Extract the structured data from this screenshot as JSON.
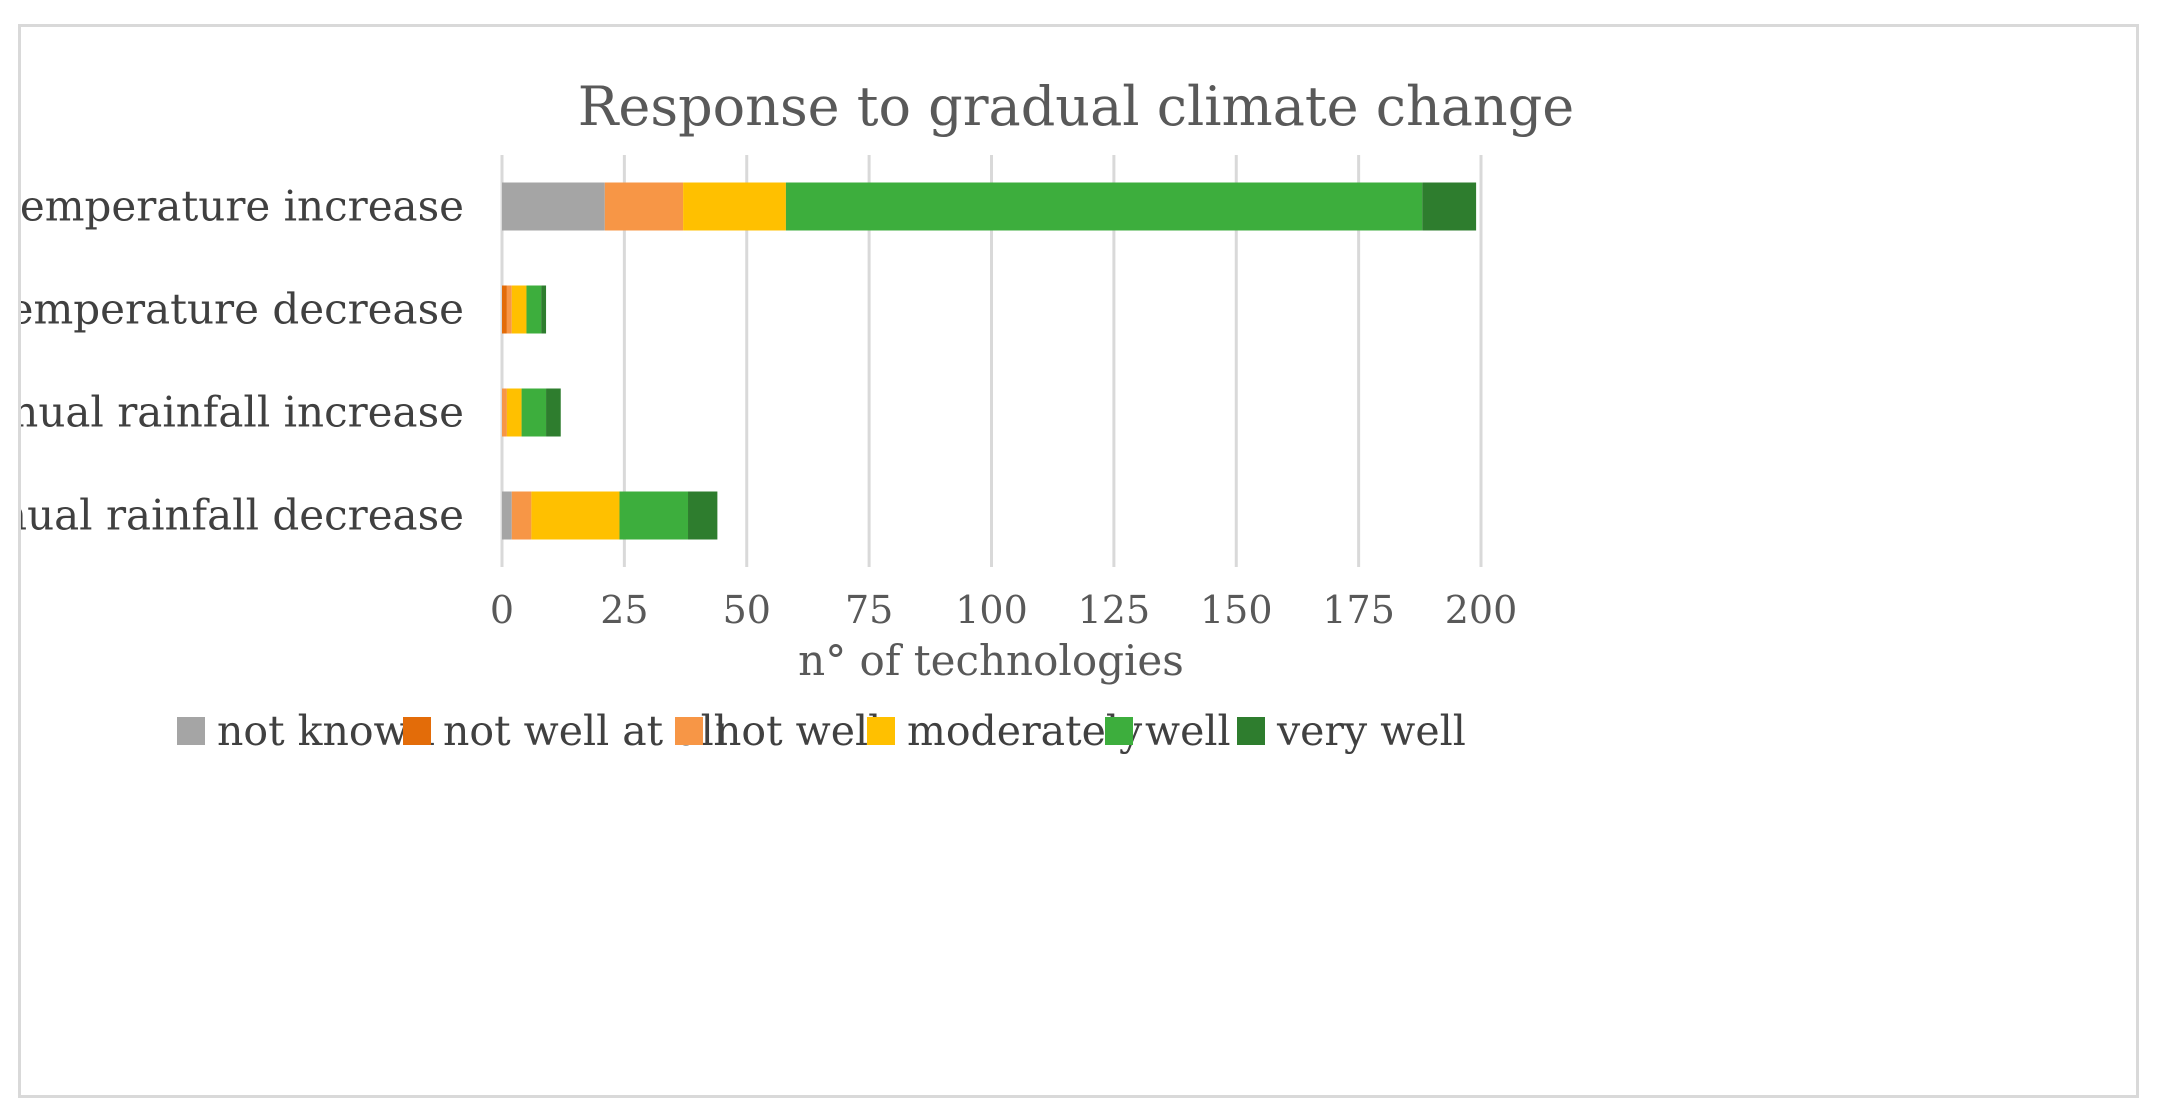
{
  "chart_data": {
    "type": "bar",
    "orientation": "horizontal",
    "stacked": true,
    "title": "Response to gradual climate change",
    "xlabel": "n° of technologies",
    "ylabel": "",
    "xlim": [
      0,
      200
    ],
    "xticks": [
      0,
      25,
      50,
      75,
      100,
      125,
      150,
      175,
      200
    ],
    "xtick_labels": [
      "0",
      "25",
      "50",
      "75",
      "100",
      "125",
      "150",
      "175",
      "200"
    ],
    "grid": true,
    "legend_position": "bottom",
    "categories": [
      "annual temperature increase",
      "annual temperature decrease",
      "annual rainfall increase",
      "annual rainfall decrease"
    ],
    "series": [
      {
        "name": "not known",
        "color": "#a5a5a5",
        "values": [
          21,
          0,
          0,
          2
        ]
      },
      {
        "name": "not well at all",
        "color": "#e36c09",
        "values": [
          0,
          1,
          0,
          0
        ]
      },
      {
        "name": "not well",
        "color": "#f79646",
        "values": [
          16,
          1,
          1,
          4
        ]
      },
      {
        "name": "moderately",
        "color": "#ffc000",
        "values": [
          21,
          3,
          3,
          18
        ]
      },
      {
        "name": "well",
        "color": "#3dae3d",
        "values": [
          130,
          3,
          5,
          14
        ]
      },
      {
        "name": "very well",
        "color": "#2e7d2e",
        "values": [
          11,
          1,
          3,
          6
        ]
      }
    ]
  }
}
